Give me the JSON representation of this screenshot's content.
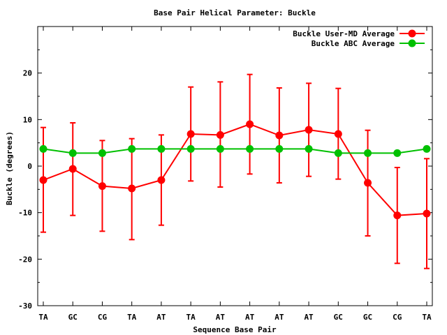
{
  "chart_data": {
    "type": "line",
    "title": "Base Pair Helical Parameter: Buckle",
    "xlabel": "Sequence Base Pair",
    "ylabel": "Buckle (degrees)",
    "categories": [
      "TA",
      "GC",
      "CG",
      "TA",
      "AT",
      "TA",
      "AT",
      "AT",
      "AT",
      "AT",
      "GC",
      "GC",
      "CG",
      "TA"
    ],
    "ylim": [
      -30,
      30
    ],
    "yticks": [
      -30,
      -20,
      -10,
      0,
      10,
      20
    ],
    "legend_position": "top-right",
    "grid": false,
    "series": [
      {
        "name": "Buckle User-MD Average",
        "color": "#ff0000",
        "values": [
          -3.0,
          -0.6,
          -4.3,
          -4.8,
          -3.0,
          6.9,
          6.7,
          9.0,
          6.6,
          7.8,
          6.9,
          -3.6,
          -10.6,
          -10.2
        ],
        "error_low": [
          -14.2,
          -10.6,
          -14.0,
          -15.8,
          -12.7,
          -3.2,
          -4.5,
          -1.7,
          -3.6,
          -2.2,
          -2.8,
          -15.0,
          -20.9,
          -22.0
        ],
        "error_high": [
          8.3,
          9.3,
          5.5,
          5.9,
          6.7,
          17.0,
          18.1,
          19.7,
          16.8,
          17.8,
          16.7,
          7.7,
          -0.3,
          1.6
        ]
      },
      {
        "name": "Buckle ABC Average",
        "color": "#00c000",
        "values": [
          3.7,
          2.8,
          2.8,
          3.7,
          3.7,
          3.7,
          3.7,
          3.7,
          3.7,
          3.7,
          2.8,
          2.8,
          2.8,
          3.7
        ]
      }
    ]
  }
}
